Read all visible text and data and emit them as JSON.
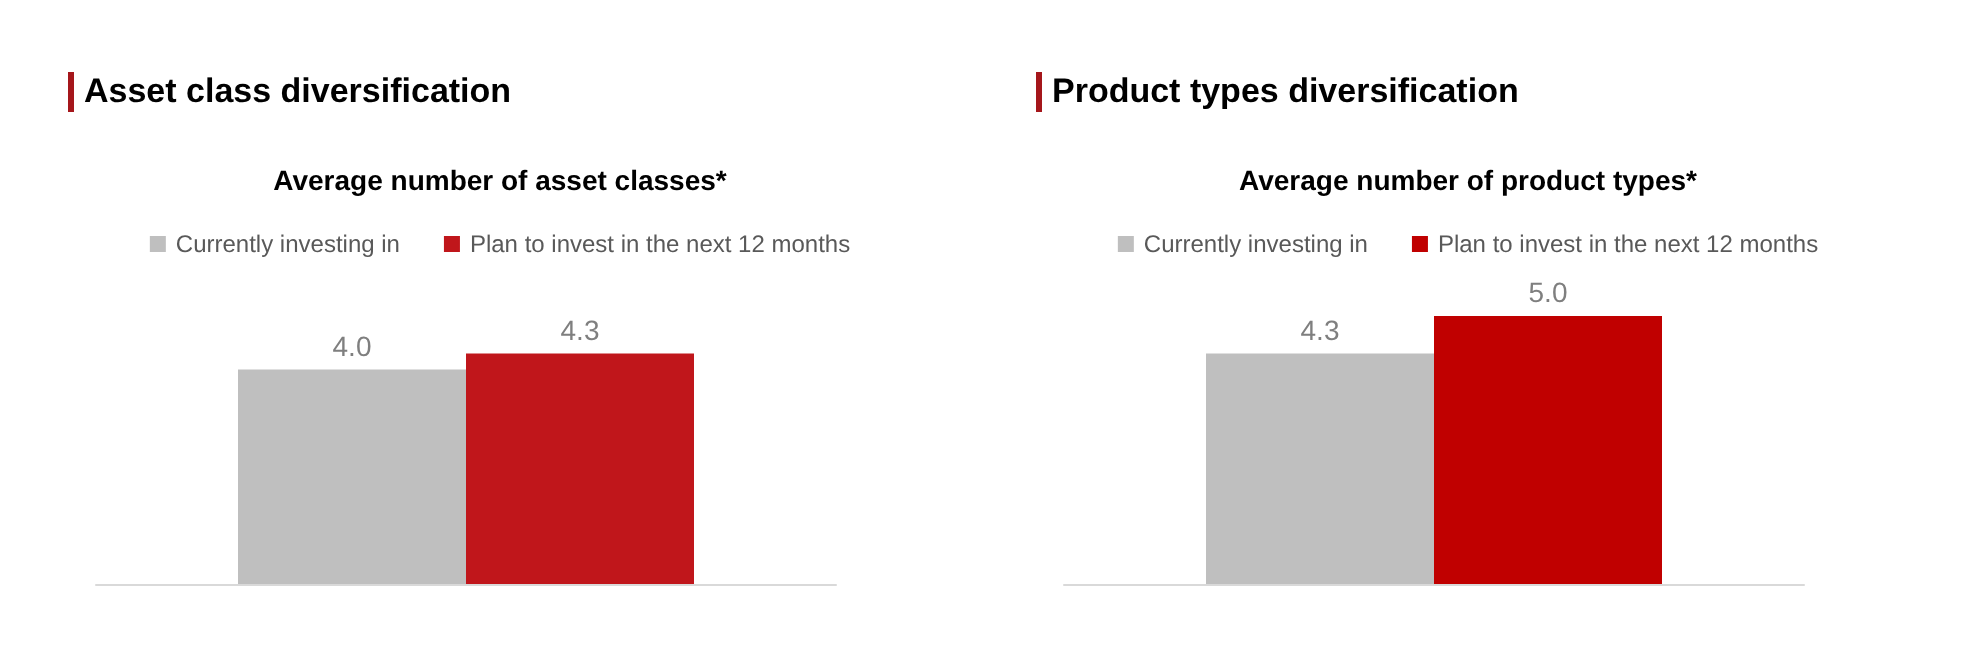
{
  "chart_data": [
    {
      "type": "bar",
      "title": "Asset class diversification",
      "subtitle": "Average number of asset classes*",
      "categories": [
        null
      ],
      "series": [
        {
          "name": "Currently investing in",
          "color": "#bfbfbf",
          "values": [
            4.0
          ],
          "value_labels": [
            "4.0"
          ]
        },
        {
          "name": "Plan to invest in the next 12 months",
          "color": "#c0161b",
          "values": [
            4.3
          ],
          "value_labels": [
            "4.3"
          ]
        }
      ],
      "legend": "top"
    },
    {
      "type": "bar",
      "title": "Product types diversification",
      "subtitle": "Average number of product types*",
      "categories": [
        null
      ],
      "series": [
        {
          "name": "Currently investing in",
          "color": "#bfbfbf",
          "values": [
            4.3
          ],
          "value_labels": [
            "4.3"
          ]
        },
        {
          "name": "Plan to invest in the next 12 months",
          "color": "#c00000",
          "values": [
            5.0
          ],
          "value_labels": [
            "5.0"
          ]
        }
      ],
      "legend": "top"
    }
  ]
}
